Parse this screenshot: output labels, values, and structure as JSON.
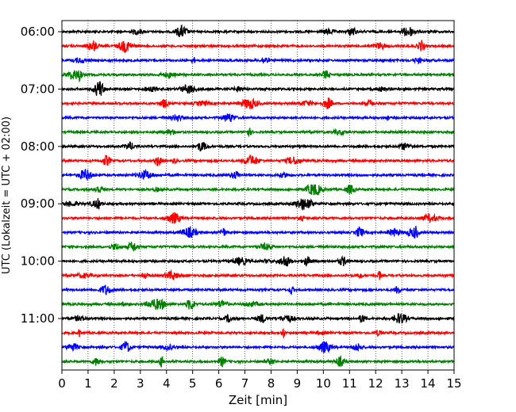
{
  "chart_data": {
    "type": "line",
    "title": "",
    "xlabel": "Zeit  [min]",
    "ylabel": "UTC (Lokalzeit = UTC + 02:00)",
    "xlim": [
      0,
      15
    ],
    "x_ticks": [
      "0",
      "1",
      "2",
      "3",
      "4",
      "5",
      "6",
      "7",
      "8",
      "9",
      "10",
      "11",
      "12",
      "13",
      "14",
      "15"
    ],
    "y_tick_labels": [
      "06:00",
      "07:00",
      "08:00",
      "09:00",
      "10:00",
      "11:00"
    ],
    "grid": "vertical dotted at each minute",
    "trace_interval_min": 15,
    "first_trace": "06:00",
    "last_trace": "11:45",
    "trace_color_cycle": [
      "#000000",
      "#ff0000",
      "#0000ff",
      "#008000"
    ],
    "traces": [
      {
        "start": "06:00",
        "color": "#000000"
      },
      {
        "start": "06:15",
        "color": "#ff0000"
      },
      {
        "start": "06:30",
        "color": "#0000ff"
      },
      {
        "start": "06:45",
        "color": "#008000"
      },
      {
        "start": "07:00",
        "color": "#000000"
      },
      {
        "start": "07:15",
        "color": "#ff0000"
      },
      {
        "start": "07:30",
        "color": "#0000ff"
      },
      {
        "start": "07:45",
        "color": "#008000"
      },
      {
        "start": "08:00",
        "color": "#000000"
      },
      {
        "start": "08:15",
        "color": "#ff0000"
      },
      {
        "start": "08:30",
        "color": "#0000ff"
      },
      {
        "start": "08:45",
        "color": "#008000"
      },
      {
        "start": "09:00",
        "color": "#000000"
      },
      {
        "start": "09:15",
        "color": "#ff0000"
      },
      {
        "start": "09:30",
        "color": "#0000ff"
      },
      {
        "start": "09:45",
        "color": "#008000"
      },
      {
        "start": "10:00",
        "color": "#000000"
      },
      {
        "start": "10:15",
        "color": "#ff0000"
      },
      {
        "start": "10:30",
        "color": "#0000ff"
      },
      {
        "start": "10:45",
        "color": "#008000"
      },
      {
        "start": "11:00",
        "color": "#000000"
      },
      {
        "start": "11:15",
        "color": "#ff0000"
      },
      {
        "start": "11:30",
        "color": "#0000ff"
      },
      {
        "start": "11:45",
        "color": "#008000"
      }
    ]
  }
}
